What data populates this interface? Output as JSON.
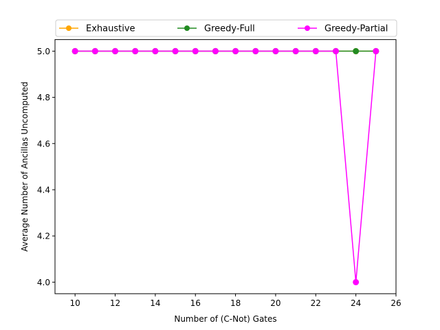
{
  "chart_data": {
    "type": "line",
    "xlabel": "Number of (C-Not) Gates",
    "ylabel": "Average Number of Ancillas Uncomputed",
    "xlim": [
      9,
      26
    ],
    "ylim": [
      3.95,
      5.05
    ],
    "xticks": [
      10,
      12,
      14,
      16,
      18,
      20,
      22,
      24,
      26
    ],
    "yticks": [
      4.0,
      4.2,
      4.4,
      4.6,
      4.8,
      5.0
    ],
    "grid": false,
    "legend_position": "top",
    "x": [
      10,
      11,
      12,
      13,
      14,
      15,
      16,
      17,
      18,
      19,
      20,
      21,
      22,
      23,
      24,
      25
    ],
    "series": [
      {
        "name": "Exhaustive",
        "color": "#ffa500",
        "marker": "circle",
        "values": [
          5,
          5,
          5,
          5,
          5,
          5,
          5,
          5,
          5,
          5,
          5,
          5,
          5,
          5,
          5,
          5
        ]
      },
      {
        "name": "Greedy-Full",
        "color": "#228b22",
        "marker": "circle",
        "values": [
          5,
          5,
          5,
          5,
          5,
          5,
          5,
          5,
          5,
          5,
          5,
          5,
          5,
          5,
          5,
          5
        ]
      },
      {
        "name": "Greedy-Partial",
        "color": "#ff00ff",
        "marker": "circle",
        "values": [
          5,
          5,
          5,
          5,
          5,
          5,
          5,
          5,
          5,
          5,
          5,
          5,
          5,
          5,
          4,
          5
        ]
      }
    ]
  }
}
